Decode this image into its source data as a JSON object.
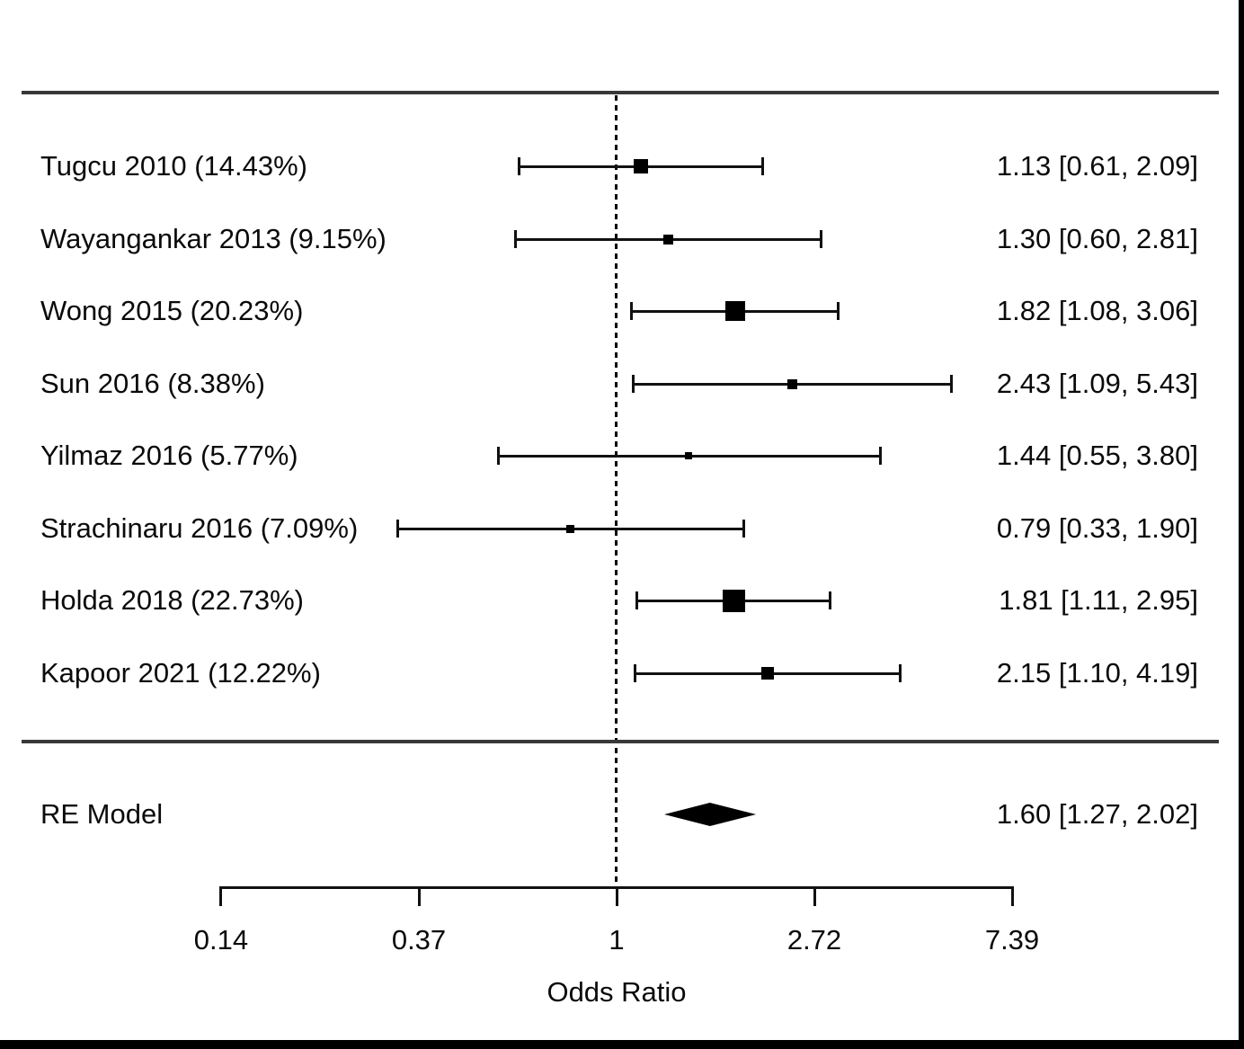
{
  "colors": {
    "foreground": "#000000",
    "background": "#ffffff",
    "rule_gray": "#383838"
  },
  "chart_data": {
    "type": "forest",
    "title": "",
    "xlabel": "Odds Ratio",
    "x_scale": "log",
    "x_range_ln": [
      -2,
      2
    ],
    "reference_line": 1,
    "grid": false,
    "x_ticks": [
      {
        "value": 0.1353,
        "label": "0.14"
      },
      {
        "value": 0.3679,
        "label": "0.37"
      },
      {
        "value": 1,
        "label": "1"
      },
      {
        "value": 2.7183,
        "label": "2.72"
      },
      {
        "value": 7.3891,
        "label": "7.39"
      }
    ],
    "studies": [
      {
        "label": "Tugcu 2010 (14.43%)",
        "weight_pct": 14.43,
        "estimate": 1.13,
        "ci_low": 0.61,
        "ci_high": 2.09,
        "annotation": "1.13 [0.61, 2.09]"
      },
      {
        "label": "Wayangankar 2013 (9.15%)",
        "weight_pct": 9.15,
        "estimate": 1.3,
        "ci_low": 0.6,
        "ci_high": 2.81,
        "annotation": "1.30 [0.60, 2.81]"
      },
      {
        "label": "Wong 2015 (20.23%)",
        "weight_pct": 20.23,
        "estimate": 1.82,
        "ci_low": 1.08,
        "ci_high": 3.06,
        "annotation": "1.82 [1.08, 3.06]"
      },
      {
        "label": "Sun 2016 (8.38%)",
        "weight_pct": 8.38,
        "estimate": 2.43,
        "ci_low": 1.09,
        "ci_high": 5.43,
        "annotation": "2.43 [1.09, 5.43]"
      },
      {
        "label": "Yilmaz 2016 (5.77%)",
        "weight_pct": 5.77,
        "estimate": 1.44,
        "ci_low": 0.55,
        "ci_high": 3.8,
        "annotation": "1.44 [0.55, 3.80]"
      },
      {
        "label": "Strachinaru 2016 (7.09%)",
        "weight_pct": 7.09,
        "estimate": 0.79,
        "ci_low": 0.33,
        "ci_high": 1.9,
        "annotation": "0.79 [0.33, 1.90]"
      },
      {
        "label": "Holda 2018 (22.73%)",
        "weight_pct": 22.73,
        "estimate": 1.81,
        "ci_low": 1.11,
        "ci_high": 2.95,
        "annotation": "1.81 [1.11, 2.95]"
      },
      {
        "label": "Kapoor 2021 (12.22%)",
        "weight_pct": 12.22,
        "estimate": 2.15,
        "ci_low": 1.1,
        "ci_high": 4.19,
        "annotation": "2.15 [1.10, 4.19]"
      }
    ],
    "summary": {
      "label": "RE Model",
      "estimate": 1.6,
      "ci_low": 1.27,
      "ci_high": 2.02,
      "annotation": "1.60 [1.27, 2.02]"
    }
  }
}
